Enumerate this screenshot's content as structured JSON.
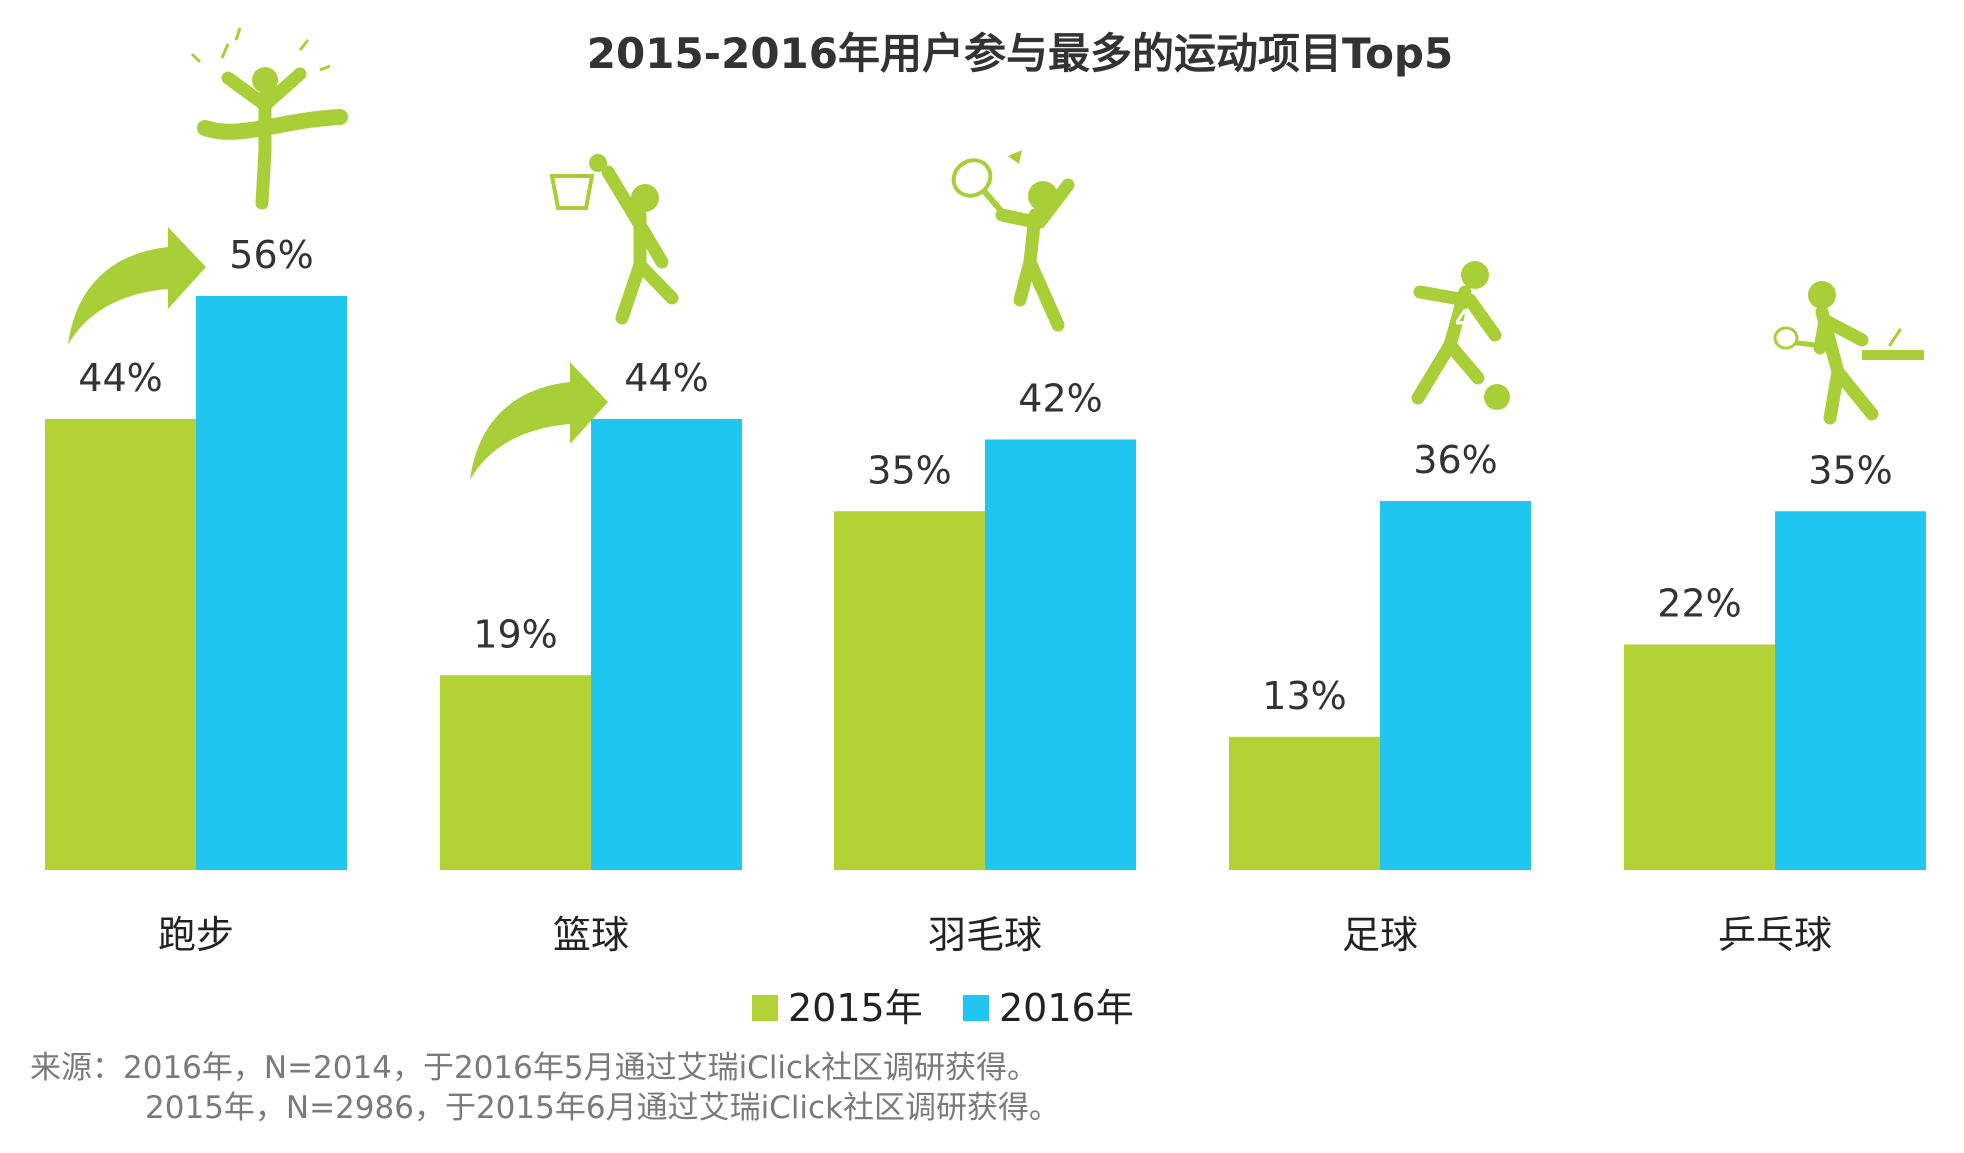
{
  "chart_data": {
    "type": "bar",
    "title": "2015-2016年用户参与最多的运动项目Top5",
    "categories": [
      "跑步",
      "篮球",
      "羽毛球",
      "足球",
      "乒乓球"
    ],
    "series": [
      {
        "name": "2015年",
        "values": [
          44,
          19,
          35,
          13,
          22
        ],
        "labels": [
          "44%",
          "19%",
          "35%",
          "13%",
          "22%"
        ]
      },
      {
        "name": "2016年",
        "values": [
          56,
          44,
          42,
          36,
          35
        ],
        "labels": [
          "56%",
          "44%",
          "42%",
          "36%",
          "35%"
        ]
      }
    ],
    "ylim": [
      0,
      56
    ],
    "grid": false,
    "legend_position": "bottom",
    "growth_arrows_on": [
      "跑步",
      "篮球"
    ],
    "category_icons": [
      "runner-finish-icon",
      "basketball-player-icon",
      "badminton-player-icon",
      "soccer-player-icon",
      "table-tennis-player-icon"
    ]
  },
  "colors": {
    "series_2015": "#b2d235",
    "series_2016": "#1fc7f0",
    "icon": "#a9cf38",
    "text": "#333333",
    "source": "#7a7a7a"
  },
  "source": {
    "line1": "来源：2016年，N=2014，于2016年5月通过艾瑞iClick社区调研获得。",
    "line2": "2015年，N=2986，于2015年6月通过艾瑞iClick社区调研获得。"
  }
}
